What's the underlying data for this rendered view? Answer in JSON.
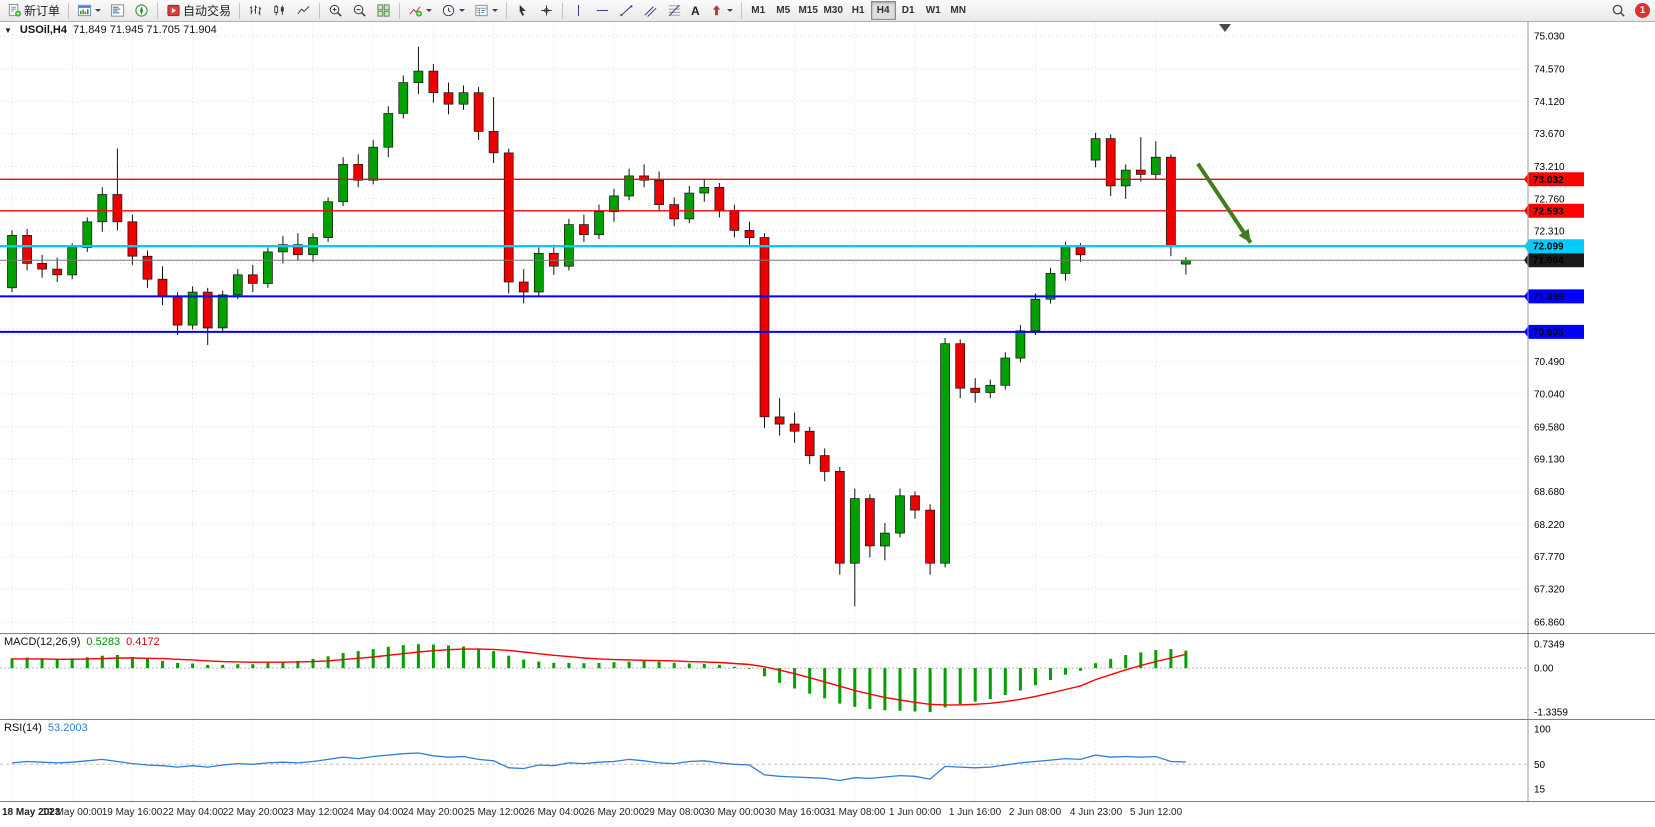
{
  "toolbar": {
    "new_order_label": "新订单",
    "autotrading_label": "自动交易",
    "text_tool_label": "A",
    "timeframes": [
      "M1",
      "M5",
      "M15",
      "M30",
      "H1",
      "H4",
      "D1",
      "W1",
      "MN"
    ],
    "active_timeframe": "H4",
    "notification_badge": "1"
  },
  "main_chart": {
    "symbol_period": "USOil,H4",
    "ohlc_text": "71.849 71.945 71.705 71.904"
  },
  "chart_data": {
    "type": "candlestick",
    "symbol": "USOil",
    "timeframe": "H4",
    "bull_color": "#00a000",
    "bear_color": "#ee0000",
    "price_axis": {
      "max": 75.03,
      "min": 66.86,
      "labels": [
        "75.030",
        "74.570",
        "74.120",
        "73.670",
        "73.210",
        "72.760",
        "72.310",
        "71.860",
        "71.410",
        "70.950",
        "70.490",
        "70.040",
        "69.580",
        "69.130",
        "68.680",
        "68.220",
        "67.770",
        "67.320",
        "66.860"
      ]
    },
    "time_labels": [
      "18 May 2023",
      "19 May 00:00",
      "19 May 16:00",
      "22 May 04:00",
      "22 May 20:00",
      "23 May 12:00",
      "24 May 04:00",
      "24 May 20:00",
      "25 May 12:00",
      "26 May 04:00",
      "26 May 20:00",
      "29 May 08:00",
      "30 May 00:00",
      "30 May 16:00",
      "31 May 08:00",
      "1 Jun 00:00",
      "1 Jun 16:00",
      "2 Jun 08:00",
      "4 Jun 23:00",
      "5 Jun 12:00"
    ],
    "label_every_n_bars": 4,
    "ohlc": [
      [
        71.52,
        72.32,
        71.46,
        72.25
      ],
      [
        72.25,
        72.34,
        71.76,
        71.86
      ],
      [
        71.86,
        71.98,
        71.66,
        71.78
      ],
      [
        71.78,
        71.94,
        71.6,
        71.7
      ],
      [
        71.7,
        72.14,
        71.64,
        72.08
      ],
      [
        72.08,
        72.5,
        72.02,
        72.44
      ],
      [
        72.44,
        72.92,
        72.3,
        72.82
      ],
      [
        72.82,
        73.46,
        72.32,
        72.44
      ],
      [
        72.44,
        72.54,
        71.84,
        71.96
      ],
      [
        71.96,
        72.04,
        71.52,
        71.64
      ],
      [
        71.64,
        71.82,
        71.28,
        71.4
      ],
      [
        71.4,
        71.46,
        70.86,
        71.0
      ],
      [
        71.0,
        71.54,
        70.94,
        71.46
      ],
      [
        71.46,
        71.52,
        70.72,
        70.96
      ],
      [
        70.96,
        71.48,
        70.9,
        71.42
      ],
      [
        71.42,
        71.78,
        71.36,
        71.7
      ],
      [
        71.7,
        71.84,
        71.46,
        71.58
      ],
      [
        71.58,
        72.08,
        71.52,
        72.02
      ],
      [
        72.02,
        72.24,
        71.86,
        72.12
      ],
      [
        72.12,
        72.28,
        71.9,
        71.98
      ],
      [
        71.98,
        72.28,
        71.88,
        72.22
      ],
      [
        72.22,
        72.78,
        72.16,
        72.72
      ],
      [
        72.72,
        73.34,
        72.66,
        73.24
      ],
      [
        73.24,
        73.38,
        72.92,
        73.02
      ],
      [
        73.02,
        73.58,
        72.96,
        73.48
      ],
      [
        73.48,
        74.05,
        73.34,
        73.95
      ],
      [
        73.95,
        74.48,
        73.88,
        74.38
      ],
      [
        74.38,
        74.88,
        74.22,
        74.54
      ],
      [
        74.54,
        74.64,
        74.1,
        74.24
      ],
      [
        74.24,
        74.38,
        73.94,
        74.08
      ],
      [
        74.08,
        74.34,
        74.0,
        74.24
      ],
      [
        74.24,
        74.32,
        73.58,
        73.7
      ],
      [
        73.7,
        74.18,
        73.26,
        73.4
      ],
      [
        73.4,
        73.46,
        71.44,
        71.6
      ],
      [
        71.6,
        71.78,
        71.3,
        71.46
      ],
      [
        71.46,
        72.08,
        71.4,
        72.0
      ],
      [
        72.0,
        72.12,
        71.7,
        71.82
      ],
      [
        71.82,
        72.48,
        71.76,
        72.4
      ],
      [
        72.4,
        72.54,
        72.16,
        72.26
      ],
      [
        72.26,
        72.68,
        72.2,
        72.58
      ],
      [
        72.58,
        72.9,
        72.44,
        72.8
      ],
      [
        72.8,
        73.18,
        72.74,
        73.08
      ],
      [
        73.08,
        73.24,
        72.92,
        73.02
      ],
      [
        73.02,
        73.14,
        72.58,
        72.68
      ],
      [
        72.68,
        72.78,
        72.38,
        72.48
      ],
      [
        72.48,
        72.94,
        72.42,
        72.84
      ],
      [
        72.84,
        73.04,
        72.72,
        72.92
      ],
      [
        72.92,
        72.98,
        72.5,
        72.6
      ],
      [
        72.6,
        72.68,
        72.22,
        72.32
      ],
      [
        72.32,
        72.44,
        72.12,
        72.22
      ],
      [
        72.22,
        72.28,
        69.56,
        69.72
      ],
      [
        69.72,
        69.98,
        69.46,
        69.62
      ],
      [
        69.62,
        69.78,
        69.36,
        69.52
      ],
      [
        69.52,
        69.58,
        69.06,
        69.18
      ],
      [
        69.18,
        69.28,
        68.82,
        68.96
      ],
      [
        68.96,
        69.02,
        67.52,
        67.68
      ],
      [
        67.68,
        68.72,
        67.08,
        68.58
      ],
      [
        68.58,
        68.64,
        67.76,
        67.92
      ],
      [
        67.92,
        68.24,
        67.72,
        68.1
      ],
      [
        68.1,
        68.72,
        68.04,
        68.62
      ],
      [
        68.62,
        68.68,
        68.3,
        68.42
      ],
      [
        68.42,
        68.5,
        67.52,
        67.68
      ],
      [
        67.68,
        70.82,
        67.62,
        70.74
      ],
      [
        70.74,
        70.8,
        69.98,
        70.12
      ],
      [
        70.12,
        70.26,
        69.92,
        70.06
      ],
      [
        70.06,
        70.24,
        69.98,
        70.16
      ],
      [
        70.16,
        70.62,
        70.1,
        70.54
      ],
      [
        70.54,
        71.0,
        70.48,
        70.92
      ],
      [
        70.92,
        71.44,
        70.86,
        71.36
      ],
      [
        71.36,
        71.8,
        71.3,
        71.72
      ],
      [
        71.72,
        72.16,
        71.62,
        72.08
      ],
      [
        72.08,
        72.14,
        71.88,
        71.98
      ],
      [
        73.3,
        73.68,
        73.2,
        73.6
      ],
      [
        73.6,
        73.66,
        72.8,
        72.94
      ],
      [
        72.94,
        73.24,
        72.76,
        73.16
      ],
      [
        73.16,
        73.62,
        73.0,
        73.1
      ],
      [
        73.1,
        73.56,
        73.02,
        73.34
      ],
      [
        73.34,
        73.38,
        71.96,
        72.1
      ],
      [
        71.849,
        71.945,
        71.705,
        71.904
      ]
    ],
    "hlines": [
      {
        "price": 73.032,
        "label": "73.032",
        "color": "#ff0000",
        "width": 1.4,
        "text_color": "#ffffff"
      },
      {
        "price": 72.593,
        "label": "72.593",
        "color": "#ff0000",
        "width": 1.4,
        "text_color": "#ffffff"
      },
      {
        "price": 72.099,
        "label": "72.099",
        "color": "#00ccff",
        "width": 2.4,
        "text_color": "#00303a"
      },
      {
        "price": 71.399,
        "label": "71.399",
        "color": "#0000ff",
        "width": 2,
        "text_color": "#ffffff"
      },
      {
        "price": 70.905,
        "label": "70.905",
        "color": "#0000ff",
        "width": 2,
        "text_color": "#ffffff"
      }
    ],
    "current_price": {
      "price": 71.904,
      "label": "71.904",
      "color": "#1a1a1a"
    },
    "trend_arrow": {
      "x1_bar": 78.8,
      "price1": 73.25,
      "x2_bar": 82.3,
      "price2": 72.15,
      "color": "#3f7d1f"
    },
    "macd": {
      "title": "MACD(12,26,9)",
      "value_main": "0.5283",
      "value_signal": "0.4172",
      "axis_labels": [
        "0.7349",
        "0.00",
        "-1.3359"
      ],
      "max": 0.7349,
      "min": -1.3359,
      "hist_color": "#00a000",
      "signal_color": "#ff0000",
      "histogram": [
        0.3,
        0.32,
        0.3,
        0.28,
        0.3,
        0.33,
        0.38,
        0.4,
        0.34,
        0.28,
        0.22,
        0.16,
        0.14,
        0.1,
        0.1,
        0.12,
        0.12,
        0.16,
        0.2,
        0.22,
        0.28,
        0.36,
        0.46,
        0.52,
        0.58,
        0.65,
        0.7,
        0.73,
        0.72,
        0.69,
        0.66,
        0.6,
        0.52,
        0.38,
        0.26,
        0.2,
        0.16,
        0.16,
        0.15,
        0.16,
        0.18,
        0.2,
        0.22,
        0.2,
        0.16,
        0.14,
        0.13,
        0.1,
        0.04,
        -0.02,
        -0.25,
        -0.45,
        -0.62,
        -0.78,
        -0.92,
        -1.08,
        -1.18,
        -1.24,
        -1.28,
        -1.3,
        -1.32,
        -1.34,
        -1.2,
        -1.1,
        -1.02,
        -0.94,
        -0.82,
        -0.68,
        -0.52,
        -0.36,
        -0.2,
        -0.08,
        0.15,
        0.28,
        0.4,
        0.48,
        0.55,
        0.58,
        0.53
      ],
      "signal": [
        0.28,
        0.28,
        0.28,
        0.27,
        0.27,
        0.28,
        0.29,
        0.31,
        0.31,
        0.3,
        0.29,
        0.27,
        0.25,
        0.22,
        0.2,
        0.19,
        0.18,
        0.18,
        0.18,
        0.19,
        0.2,
        0.22,
        0.26,
        0.3,
        0.34,
        0.39,
        0.44,
        0.49,
        0.53,
        0.56,
        0.58,
        0.58,
        0.57,
        0.54,
        0.49,
        0.44,
        0.39,
        0.35,
        0.31,
        0.28,
        0.26,
        0.25,
        0.24,
        0.23,
        0.22,
        0.2,
        0.19,
        0.17,
        0.14,
        0.11,
        0.04,
        -0.06,
        -0.17,
        -0.29,
        -0.42,
        -0.55,
        -0.68,
        -0.79,
        -0.89,
        -0.97,
        -1.04,
        -1.1,
        -1.12,
        -1.12,
        -1.1,
        -1.07,
        -1.02,
        -0.95,
        -0.86,
        -0.76,
        -0.65,
        -0.54,
        -0.35,
        -0.2,
        -0.05,
        0.08,
        0.2,
        0.31,
        0.42
      ]
    },
    "rsi": {
      "title": "RSI(14)",
      "value": "53.2003",
      "axis_labels": [
        "100",
        "50",
        "15"
      ],
      "max": 100,
      "min": 15,
      "level": 50,
      "color": "#2f7ed8",
      "values": [
        52,
        54,
        53,
        52,
        53,
        55,
        57,
        54,
        51,
        49,
        48,
        46,
        48,
        46,
        49,
        51,
        50,
        52,
        53,
        52,
        54,
        57,
        60,
        58,
        61,
        63,
        65,
        66,
        62,
        60,
        61,
        57,
        55,
        45,
        44,
        49,
        48,
        52,
        51,
        53,
        54,
        57,
        55,
        52,
        51,
        54,
        55,
        52,
        50,
        49,
        35,
        33,
        32,
        31,
        30,
        27,
        31,
        30,
        32,
        34,
        33,
        29,
        47,
        46,
        45,
        46,
        49,
        52,
        54,
        56,
        58,
        57,
        63,
        60,
        61,
        60,
        61,
        54,
        53.2
      ]
    }
  }
}
